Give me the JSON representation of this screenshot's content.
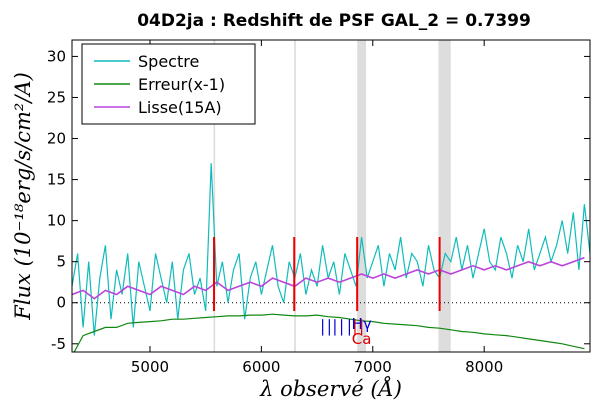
{
  "chart_data": {
    "type": "line",
    "title": "04D2ja : Redshift de PSF GAL_2 = 0.7399",
    "xlabel": "λ observé (Å)",
    "ylabel": "Flux (10⁻¹⁸erg/s/cm²/A)",
    "xlim": [
      4300,
      8950
    ],
    "ylim": [
      -6,
      32
    ],
    "xticks": [
      5000,
      6000,
      7000,
      8000
    ],
    "yticks": [
      -5,
      0,
      5,
      10,
      15,
      20,
      25,
      30
    ],
    "legend_position": "top-left",
    "colors": {
      "spectre": "#11bbbb",
      "erreur": "#118811",
      "lisse": "#bb44dd",
      "lines_blue": "#0000dd",
      "lines_red": "#dd0000",
      "telluric": "#dddddd",
      "masked": "#ee0000"
    },
    "series": [
      {
        "name": "Spectre",
        "x": [
          4300,
          4350,
          4400,
          4450,
          4500,
          4550,
          4600,
          4650,
          4700,
          4750,
          4800,
          4850,
          4900,
          4950,
          5000,
          5050,
          5100,
          5150,
          5200,
          5250,
          5300,
          5350,
          5400,
          5450,
          5500,
          5550,
          5600,
          5650,
          5700,
          5750,
          5800,
          5850,
          5900,
          5950,
          6000,
          6050,
          6100,
          6150,
          6200,
          6250,
          6300,
          6350,
          6400,
          6450,
          6500,
          6550,
          6600,
          6650,
          6700,
          6750,
          6800,
          6850,
          6900,
          6950,
          7000,
          7050,
          7100,
          7150,
          7200,
          7250,
          7300,
          7350,
          7400,
          7450,
          7500,
          7550,
          7600,
          7650,
          7700,
          7750,
          7800,
          7850,
          7900,
          7950,
          8000,
          8050,
          8100,
          8150,
          8200,
          8250,
          8300,
          8350,
          8400,
          8450,
          8500,
          8550,
          8600,
          8650,
          8700,
          8750,
          8800,
          8850,
          8900,
          8950
        ],
        "values": [
          2,
          6,
          -3,
          5,
          -4,
          3,
          7,
          -2,
          4,
          1,
          6,
          -3,
          5,
          2,
          -1,
          6,
          3,
          0,
          5,
          -2,
          4,
          6,
          1,
          3,
          -1,
          17,
          2,
          5,
          0,
          4,
          6,
          -2,
          3,
          5,
          1,
          4,
          7,
          2,
          0,
          5,
          3,
          6,
          1,
          4,
          2,
          7,
          3,
          5,
          1,
          6,
          4,
          2,
          8,
          3,
          5,
          7,
          2,
          6,
          4,
          8,
          3,
          6,
          5,
          2,
          7,
          4,
          3,
          6,
          5,
          8,
          4,
          7,
          3,
          6,
          9,
          5,
          4,
          8,
          6,
          3,
          7,
          5,
          9,
          4,
          6,
          8,
          5,
          7,
          10,
          6,
          11,
          4,
          12,
          6
        ]
      },
      {
        "name": "Erreur(x-1)",
        "x": [
          4300,
          4400,
          4500,
          4600,
          4700,
          4800,
          4900,
          5000,
          5100,
          5200,
          5300,
          5400,
          5500,
          5600,
          5700,
          5800,
          5900,
          6000,
          6100,
          6200,
          6300,
          6400,
          6500,
          6600,
          6700,
          6800,
          6900,
          7000,
          7100,
          7200,
          7300,
          7400,
          7500,
          7600,
          7700,
          7800,
          7900,
          8000,
          8100,
          8200,
          8300,
          8400,
          8500,
          8600,
          8700,
          8800,
          8900
        ],
        "values": [
          -6.5,
          -4,
          -3.5,
          -3,
          -3,
          -2.5,
          -2.4,
          -2.3,
          -2.2,
          -2,
          -2,
          -1.9,
          -1.8,
          -1.7,
          -1.6,
          -1.6,
          -1.5,
          -1.5,
          -1.4,
          -1.5,
          -1.6,
          -1.6,
          -1.5,
          -1.7,
          -1.8,
          -2,
          -2.2,
          -2.3,
          -2.5,
          -2.6,
          -2.7,
          -2.8,
          -3,
          -3.1,
          -3.3,
          -3.5,
          -3.6,
          -3.8,
          -3.9,
          -4,
          -4.2,
          -4.4,
          -4.6,
          -4.8,
          -5,
          -5.3,
          -5.6
        ]
      },
      {
        "name": "Lisse(15A)",
        "x": [
          4300,
          4400,
          4500,
          4600,
          4700,
          4800,
          4900,
          5000,
          5100,
          5200,
          5300,
          5400,
          5500,
          5600,
          5700,
          5800,
          5900,
          6000,
          6100,
          6200,
          6300,
          6400,
          6500,
          6600,
          6700,
          6800,
          6900,
          7000,
          7100,
          7200,
          7300,
          7400,
          7500,
          7600,
          7700,
          7800,
          7900,
          8000,
          8100,
          8200,
          8300,
          8400,
          8500,
          8600,
          8700,
          8800,
          8900
        ],
        "values": [
          1,
          1.5,
          0.5,
          1.5,
          1,
          2,
          1.5,
          1,
          2,
          1.5,
          1,
          2,
          1.5,
          2.5,
          1.5,
          2,
          2.5,
          2,
          3,
          2.5,
          2,
          3,
          2.5,
          3,
          2.5,
          3,
          3.5,
          3,
          3.5,
          3,
          3.5,
          4,
          3.5,
          4,
          3.5,
          4,
          4.5,
          4,
          4.5,
          4,
          4.5,
          5,
          4.5,
          5,
          4.5,
          5,
          5.5
        ]
      }
    ],
    "telluric_bands": [
      [
        5570,
        5585
      ],
      [
        6295,
        6310
      ],
      [
        6860,
        6940
      ],
      [
        7590,
        7700
      ]
    ],
    "masked_segments": [
      [
        5560,
        5590
      ],
      [
        6285,
        6305
      ],
      [
        6850,
        6870
      ],
      [
        7590,
        7610
      ]
    ],
    "lines": [
      {
        "label": "Hγ",
        "color": "#0000dd",
        "x": [
          6550,
          6610,
          6660,
          6720,
          6790
        ],
        "labelx": 6900
      },
      {
        "label": "Ca",
        "color": "#dd0000",
        "x": [
          6840,
          6900
        ],
        "labelx": 6900
      }
    ]
  }
}
